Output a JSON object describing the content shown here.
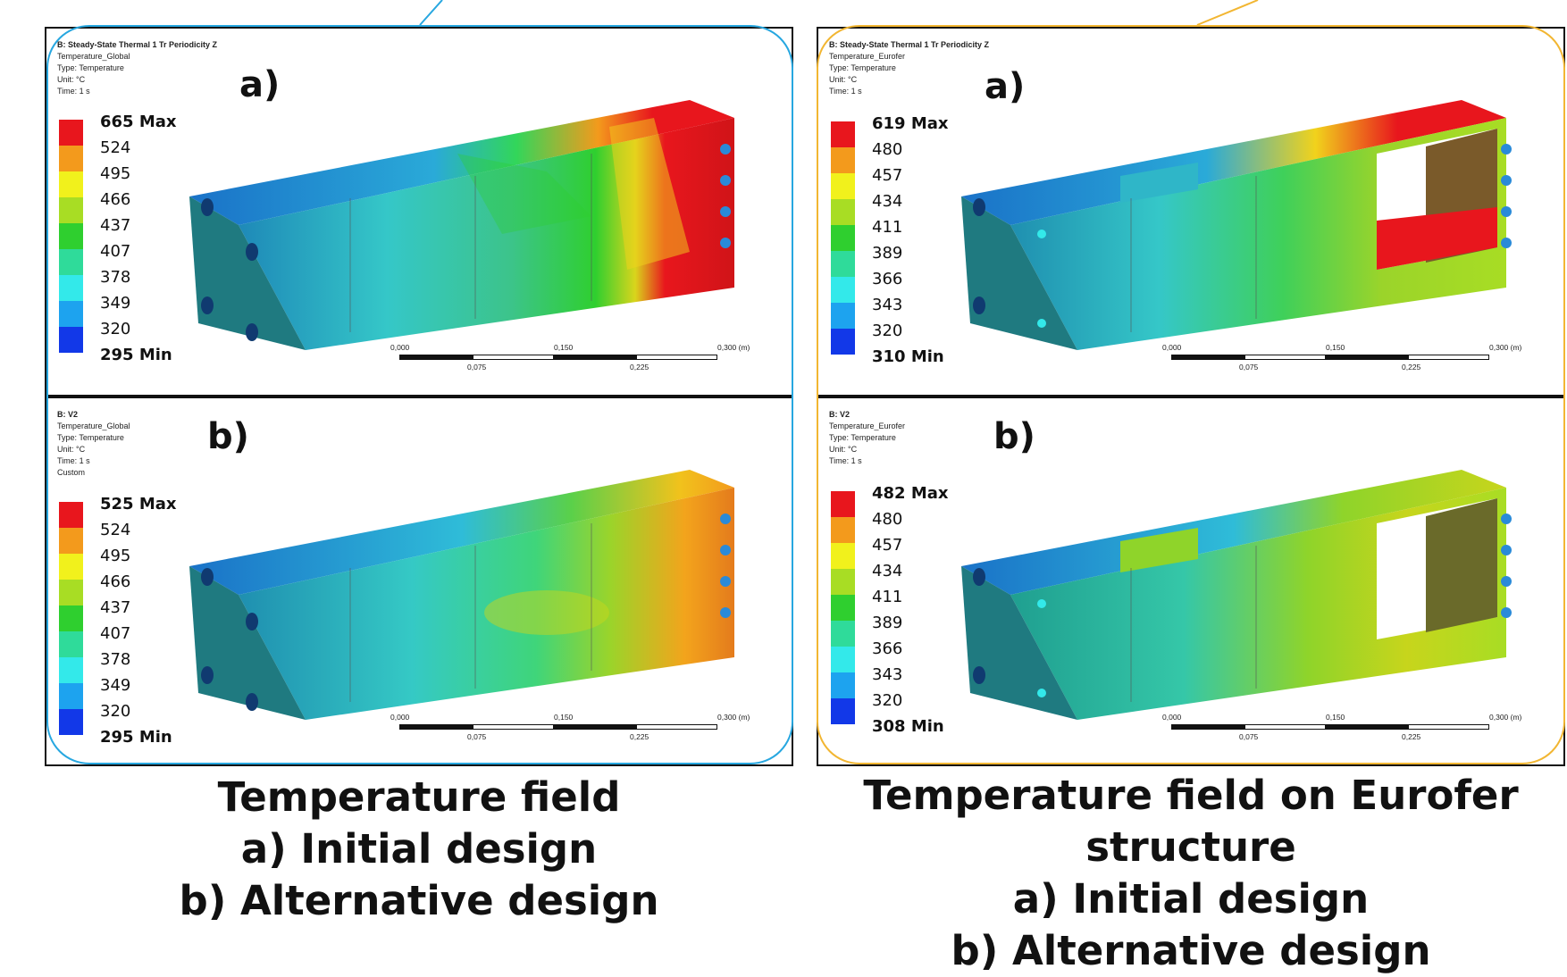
{
  "panels": {
    "left_a": {
      "header": [
        "B: Steady-State Thermal 1 Tr Periodicity Z",
        "Temperature_Global",
        "Type: Temperature",
        "Unit: °C",
        "Time: 1 s"
      ],
      "tag": "a)",
      "legend": [
        "665 Max",
        "524",
        "495",
        "466",
        "437",
        "407",
        "378",
        "349",
        "320",
        "295 Min"
      ]
    },
    "left_b": {
      "header": [
        "B: V2",
        "Temperature_Global",
        "Type: Temperature",
        "Unit: °C",
        "Time: 1 s",
        "Custom"
      ],
      "tag": "b)",
      "legend": [
        "525 Max",
        "524",
        "495",
        "466",
        "437",
        "407",
        "378",
        "349",
        "320",
        "295 Min"
      ]
    },
    "right_a": {
      "header": [
        "B: Steady-State Thermal 1 Tr Periodicity Z",
        "Temperature_Eurofer",
        "Type: Temperature",
        "Unit: °C",
        "Time: 1 s"
      ],
      "tag": "a)",
      "legend": [
        "619 Max",
        "480",
        "457",
        "434",
        "411",
        "389",
        "366",
        "343",
        "320",
        "310 Min"
      ]
    },
    "right_b": {
      "header": [
        "B: V2",
        "Temperature_Eurofer",
        "Type: Temperature",
        "Unit: °C",
        "Time: 1 s"
      ],
      "tag": "b)",
      "legend": [
        "482 Max",
        "480",
        "457",
        "434",
        "411",
        "389",
        "366",
        "343",
        "320",
        "308 Min"
      ]
    }
  },
  "legend_colors": [
    "#e8161d",
    "#f39a1c",
    "#f1f11c",
    "#a8dd24",
    "#2fcf2f",
    "#2fdb9a",
    "#33e9ea",
    "#1da3ef",
    "#1238e8",
    "#0a10c8"
  ],
  "scale_bar": {
    "top": [
      "0,000",
      "0,150",
      "0,300 (m)"
    ],
    "bottom": [
      "0,075",
      "0,225"
    ]
  },
  "captions": {
    "left": [
      "Temperature field",
      "a)  Initial design",
      "b)  Alternative design"
    ],
    "right": [
      "Temperature field on Eurofer",
      "structure",
      "a)  Initial design",
      "b)  Alternative design"
    ]
  },
  "colors": {
    "left_frame": "#27a7e0",
    "right_frame": "#f2b632",
    "panel_border": "#111111"
  }
}
